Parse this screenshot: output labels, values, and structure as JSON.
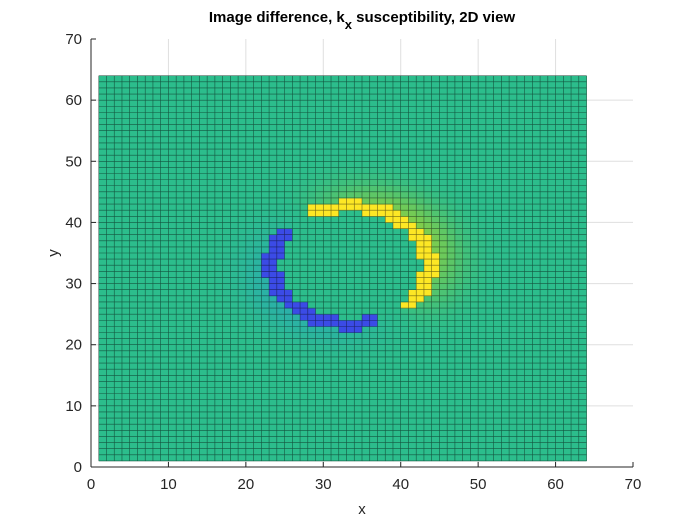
{
  "chart_data": {
    "type": "heatmap",
    "title": "Image difference, k",
    "title_subscript": "x",
    "title_rest": " susceptibility, 2D view",
    "xlabel": "x",
    "ylabel": "y",
    "xlim": [
      0,
      70
    ],
    "ylim": [
      0,
      70
    ],
    "xticks": [
      0,
      10,
      20,
      30,
      40,
      50,
      60,
      70
    ],
    "yticks": [
      0,
      10,
      20,
      30,
      40,
      50,
      60,
      70
    ],
    "grid": true,
    "surface": {
      "x_range": [
        1,
        64
      ],
      "y_range": [
        1,
        64
      ],
      "cell_size": 1,
      "edge_color": "#000000",
      "background_color": "#2cbd8c",
      "ring": {
        "center": [
          33.5,
          33
        ],
        "radius_x": 10.2,
        "radius_y": 9.6,
        "thickness": 1.6,
        "high_color": "#fde725",
        "low_color": "#3b4be6",
        "pos_halo_color": "#8fd040",
        "neg_halo_color": "#2aa1c9"
      }
    },
    "colors": {
      "axis": "#262626",
      "grid": "#dfdfdf"
    }
  }
}
